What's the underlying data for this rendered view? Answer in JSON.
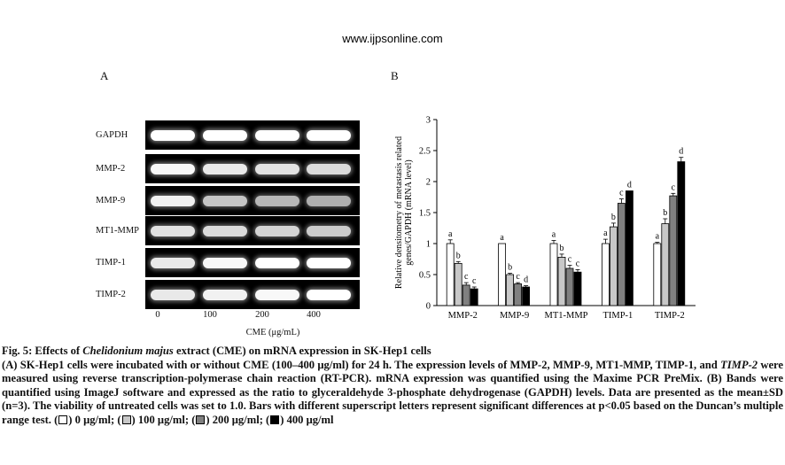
{
  "header": {
    "site": "www.ijpsonline.com"
  },
  "panel_a": {
    "letter": "A",
    "rows": [
      {
        "label": "GAPDH",
        "bands": [
          1.0,
          1.0,
          1.0,
          1.0
        ]
      },
      {
        "label": "MMP-2",
        "bands": [
          0.95,
          0.85,
          0.8,
          0.75
        ]
      },
      {
        "label": "MMP-9",
        "bands": [
          0.9,
          0.6,
          0.5,
          0.45
        ]
      },
      {
        "label": "MT1-MMP",
        "bands": [
          0.8,
          0.75,
          0.7,
          0.65
        ]
      },
      {
        "label": "TIMP-1",
        "bands": [
          0.85,
          0.95,
          1.0,
          1.0
        ]
      },
      {
        "label": "TIMP-2",
        "bands": [
          0.85,
          0.9,
          0.95,
          1.0
        ]
      }
    ],
    "lanes": [
      "0",
      "100",
      "200",
      "400"
    ],
    "xlabel": "CME (μg/mL)"
  },
  "panel_b": {
    "letter": "B"
  },
  "chart_data": {
    "type": "bar",
    "title": "",
    "ylabel": "Relative densitometry of metastasis related genes/GAPDH (mRNA level)",
    "ylabel_line1": "Relative densitometry of metastasis related",
    "ylabel_line2": "genes/GAPDH (mRNA level)",
    "xlabel": "",
    "ylim": [
      0,
      3
    ],
    "yticks": [
      "0",
      "0.5",
      "1",
      "1.5",
      "2",
      "2.5",
      "3"
    ],
    "categories": [
      "MMP-2",
      "MMP-9",
      "MT1-MMP",
      "TIMP-1",
      "TIMP-2"
    ],
    "series_colors": [
      "#ffffff",
      "#c8c8c8",
      "#808080",
      "#000000"
    ],
    "series": [
      {
        "values": [
          1.0,
          1.0,
          1.0,
          1.0,
          1.0
        ],
        "errors": [
          0.06,
          0.0,
          0.05,
          0.07,
          0.02
        ],
        "letters": [
          "a",
          "a",
          "a",
          "a",
          "a"
        ]
      },
      {
        "values": [
          0.68,
          0.5,
          0.78,
          1.27,
          1.32
        ],
        "errors": [
          0.03,
          0.02,
          0.05,
          0.06,
          0.08
        ],
        "letters": [
          "b",
          "b",
          "b",
          "b",
          "b"
        ]
      },
      {
        "values": [
          0.33,
          0.35,
          0.6,
          1.65,
          1.77
        ],
        "errors": [
          0.04,
          0.02,
          0.05,
          0.07,
          0.04
        ],
        "letters": [
          "c",
          "c",
          "c",
          "c",
          "c"
        ]
      },
      {
        "values": [
          0.27,
          0.3,
          0.54,
          1.85,
          2.32
        ],
        "errors": [
          0.03,
          0.02,
          0.04,
          0.0,
          0.07
        ],
        "letters": [
          "c",
          "d",
          "c",
          "d",
          "d"
        ]
      }
    ]
  },
  "caption": {
    "title_pre": "Fig. 5: Effects of ",
    "title_em": "Chelidonium majus",
    "title_post": " extract (CME) on mRNA expression in SK-Hep1 cells",
    "body_1": "(A) SK-Hep1 cells were incubated with or without CME (100–400 μg/ml) for 24 h. The expression levels of MMP-2, MMP-9, MT1-MMP, TIMP-1, and ",
    "body_em": "TIMP-2",
    "body_2": " were measured using reverse transcription-polymerase chain reaction (RT-PCR). mRNA expression was quantified using the Maxime PCR PreMix. (B) Bands were quantified using ImageJ software and expressed as the ratio to glyceraldehyde 3-phosphate dehydrogenase (GAPDH) levels. Data are presented as the mean±SD (n=3). The viability of untreated cells was set to 1.0. Bars with different superscript letters represent significant differences at p<0.05 based on the Duncan’s multiple range test. (",
    "legend_0": ") 0 μg/ml; (",
    "legend_1": ") 100 μg/ml; (",
    "legend_2": ") 200 μg/ml; (",
    "legend_3": ") 400 μg/ml"
  }
}
